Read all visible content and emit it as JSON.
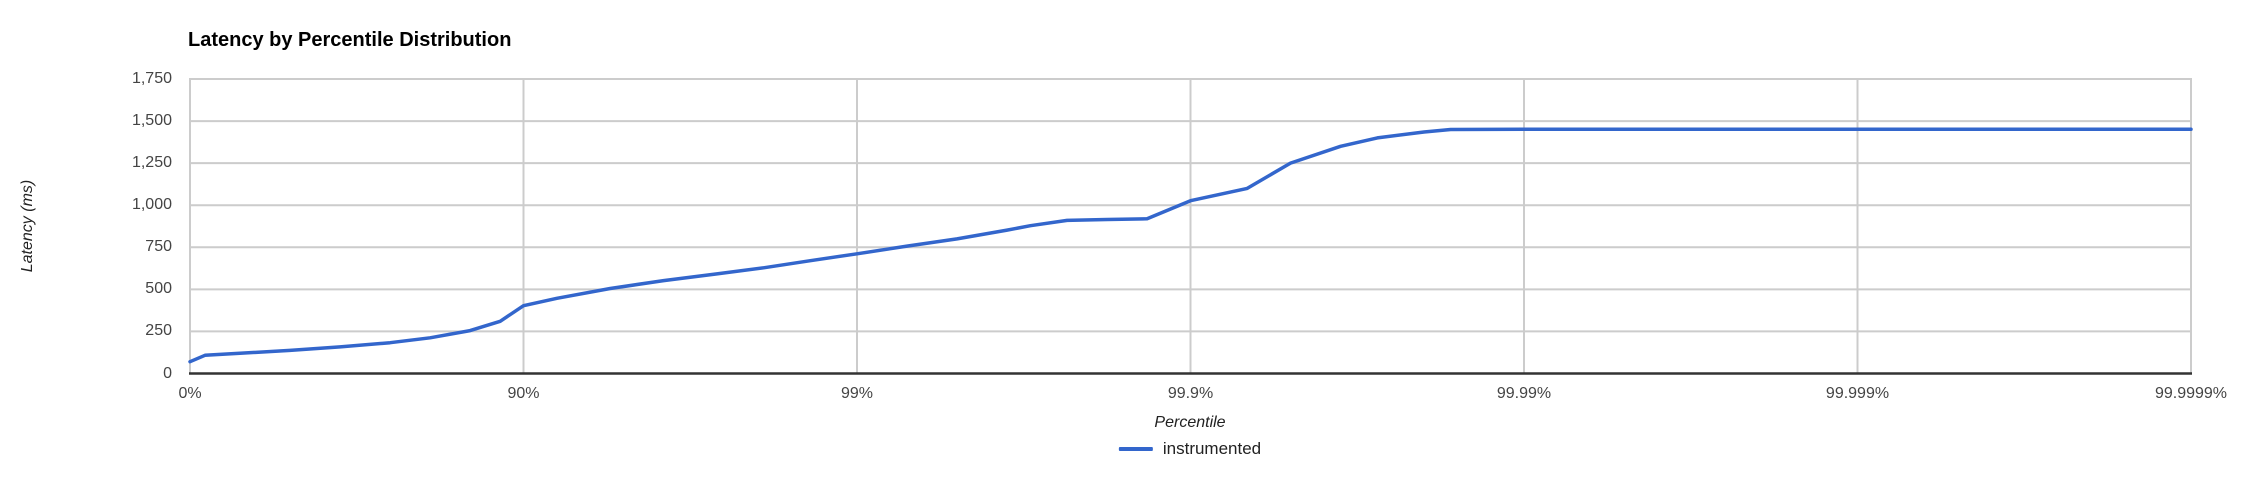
{
  "chart": {
    "title": "Latency by Percentile Distribution",
    "y_axis": {
      "title": "Latency (ms)",
      "ticks": [
        "0",
        "250",
        "500",
        "750",
        "1,000",
        "1,250",
        "1,500",
        "1,750"
      ]
    },
    "x_axis": {
      "title": "Percentile",
      "ticks": [
        "0%",
        "90%",
        "99%",
        "99.9%",
        "99.99%",
        "99.999%",
        "99.9999%"
      ]
    },
    "legend": {
      "items": [
        {
          "label": "instrumented",
          "color": "#3366cc"
        }
      ]
    },
    "colors": {
      "series_line": "#3366cc",
      "gridline": "#cccccc",
      "baseline": "#333333",
      "tick_label": "#444444",
      "axis_title": "#222222",
      "title": "#000000",
      "background": "#ffffff"
    }
  },
  "chart_data": {
    "type": "line",
    "title": "Latency by Percentile Distribution",
    "xlabel": "Percentile",
    "ylabel": "Latency (ms)",
    "x_scale": "logarithmic-percentile (x = -log10(1 - p/100), i.e. number of nines)",
    "x_tick_labels": [
      "0%",
      "90%",
      "99%",
      "99.9%",
      "99.99%",
      "99.999%",
      "99.9999%"
    ],
    "xlim_nines": [
      0,
      6
    ],
    "ylim": [
      0,
      1750
    ],
    "y_tick_step": 250,
    "grid": true,
    "legend_position": "bottom-center",
    "series": [
      {
        "name": "instrumented",
        "color": "#3366cc",
        "points": [
          {
            "percentile": "0%",
            "nines": 0.0,
            "latency_ms": 70
          },
          {
            "percentile": "9.8%",
            "nines": 0.045,
            "latency_ms": 108
          },
          {
            "percentile": "29.2%",
            "nines": 0.15,
            "latency_ms": 120
          },
          {
            "percentile": "49.9%",
            "nines": 0.3,
            "latency_ms": 137
          },
          {
            "percentile": "64.5%",
            "nines": 0.45,
            "latency_ms": 158
          },
          {
            "percentile": "74.9%",
            "nines": 0.6,
            "latency_ms": 183
          },
          {
            "percentile": "81%",
            "nines": 0.72,
            "latency_ms": 212
          },
          {
            "percentile": "85.6%",
            "nines": 0.84,
            "latency_ms": 255
          },
          {
            "percentile": "88.3%",
            "nines": 0.93,
            "latency_ms": 310
          },
          {
            "percentile": "90%",
            "nines": 1.0,
            "latency_ms": 403
          },
          {
            "percentile": "92.1%",
            "nines": 1.1,
            "latency_ms": 447
          },
          {
            "percentile": "94.5%",
            "nines": 1.26,
            "latency_ms": 505
          },
          {
            "percentile": "96.2%",
            "nines": 1.42,
            "latency_ms": 552
          },
          {
            "percentile": "97.4%",
            "nines": 1.58,
            "latency_ms": 592
          },
          {
            "percentile": "98.1%",
            "nines": 1.72,
            "latency_ms": 628
          },
          {
            "percentile": "98.6%",
            "nines": 1.86,
            "latency_ms": 670
          },
          {
            "percentile": "99%",
            "nines": 2.0,
            "latency_ms": 711
          },
          {
            "percentile": "99.3%",
            "nines": 2.15,
            "latency_ms": 757
          },
          {
            "percentile": "99.5%",
            "nines": 2.3,
            "latency_ms": 800
          },
          {
            "percentile": "99.65%",
            "nines": 2.45,
            "latency_ms": 852
          },
          {
            "percentile": "99.7%",
            "nines": 2.52,
            "latency_ms": 878
          },
          {
            "percentile": "99.77%",
            "nines": 2.63,
            "latency_ms": 910
          },
          {
            "percentile": "99.82%",
            "nines": 2.75,
            "latency_ms": 915
          },
          {
            "percentile": "99.87%",
            "nines": 2.87,
            "latency_ms": 919
          },
          {
            "percentile": "99.9%",
            "nines": 3.0,
            "latency_ms": 1027
          },
          {
            "percentile": "99.932%",
            "nines": 3.17,
            "latency_ms": 1100
          },
          {
            "percentile": "99.95%",
            "nines": 3.3,
            "latency_ms": 1250
          },
          {
            "percentile": "99.965%",
            "nines": 3.45,
            "latency_ms": 1350
          },
          {
            "percentile": "99.972%",
            "nines": 3.56,
            "latency_ms": 1400
          },
          {
            "percentile": "99.98%",
            "nines": 3.7,
            "latency_ms": 1435
          },
          {
            "percentile": "99.983%",
            "nines": 3.78,
            "latency_ms": 1450
          },
          {
            "percentile": "99.99%",
            "nines": 4.0,
            "latency_ms": 1451
          },
          {
            "percentile": "99.997%",
            "nines": 4.5,
            "latency_ms": 1451
          },
          {
            "percentile": "99.999%",
            "nines": 5.0,
            "latency_ms": 1451
          },
          {
            "percentile": "99.9997%",
            "nines": 5.5,
            "latency_ms": 1451
          },
          {
            "percentile": "99.9999%",
            "nines": 6.0,
            "latency_ms": 1451
          }
        ]
      }
    ]
  }
}
